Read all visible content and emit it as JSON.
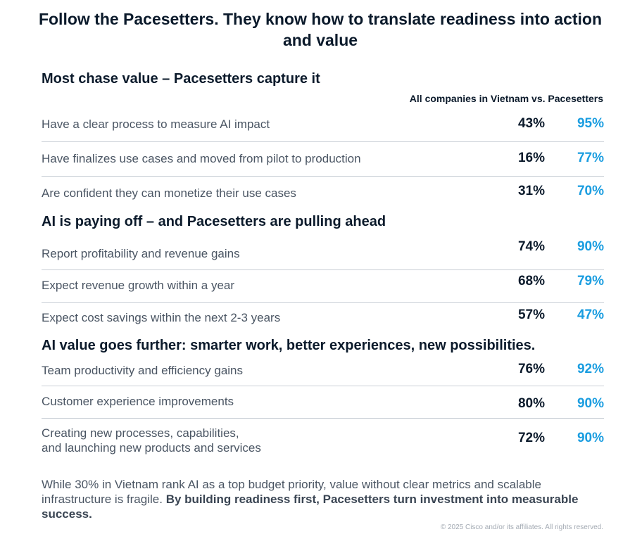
{
  "title": "Follow the Pacesetters. They know how to translate readiness into action and value",
  "column_caption": "All companies in Vietnam vs. Pacesetters",
  "sections": [
    {
      "heading": "Most chase value – Pacesetters capture it",
      "rows": [
        {
          "label": "Have a clear process to measure AI impact",
          "all": "43%",
          "pacesetters": "95%"
        },
        {
          "label": "Have finalizes use cases and moved from pilot to production",
          "all": "16%",
          "pacesetters": "77%"
        },
        {
          "label": "Are confident they can monetize their use cases",
          "all": "31%",
          "pacesetters": "70%"
        }
      ]
    },
    {
      "heading": "AI is paying off – and Pacesetters are pulling ahead",
      "rows": [
        {
          "label": "Report profitability and revenue gains",
          "all": "74%",
          "pacesetters": "90%"
        },
        {
          "label": "Expect revenue growth within a year",
          "all": "68%",
          "pacesetters": "79%"
        },
        {
          "label": "Expect cost savings within the next 2-3 years",
          "all": "57%",
          "pacesetters": "47%"
        }
      ]
    },
    {
      "heading": "AI value goes further: smarter work, better experiences, new possibilities.",
      "rows": [
        {
          "label": "Team productivity and efficiency gains",
          "all": "76%",
          "pacesetters": "92%"
        },
        {
          "label": "Customer experience improvements",
          "all": "80%",
          "pacesetters": "90%"
        },
        {
          "label": "Creating new processes, capabilities,\nand launching new products and services",
          "all": "72%",
          "pacesetters": "90%"
        }
      ]
    }
  ],
  "summary": {
    "plain": "While 30% in Vietnam rank AI as a top budget priority, value without clear metrics and scalable infrastructure is fragile. ",
    "bold": "By building readiness first, Pacesetters turn investment into measurable success."
  },
  "copyright": "© 2025 Cisco and/or its affiliates. All rights reserved.",
  "colors": {
    "heading": "#0b1a2b",
    "label": "#4a5563",
    "pacesetter_accent": "#1a9de0",
    "divider": "#c9cfd6"
  }
}
